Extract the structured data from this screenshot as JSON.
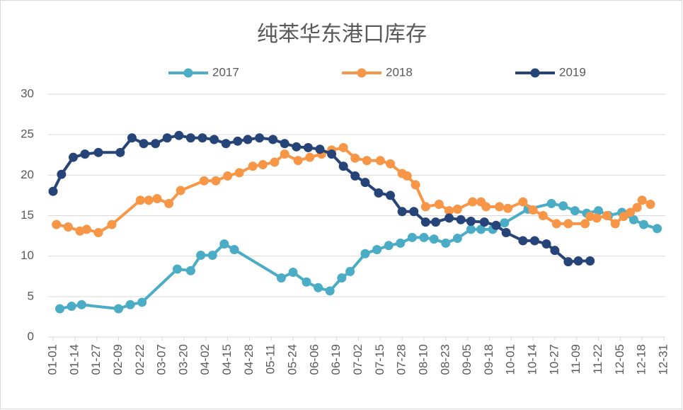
{
  "chart_data": {
    "type": "line",
    "title": "纯苯华东港口库存",
    "xlim": [
      "01-01",
      "12-31"
    ],
    "xticks": [
      "01-01",
      "01-14",
      "01-27",
      "02-09",
      "02-22",
      "03-07",
      "03-20",
      "04-02",
      "04-15",
      "04-28",
      "05-11",
      "05-24",
      "06-06",
      "06-19",
      "07-02",
      "07-15",
      "07-28",
      "08-10",
      "08-23",
      "09-05",
      "09-18",
      "10-01",
      "10-14",
      "10-27",
      "11-09",
      "11-22",
      "12-05",
      "12-18",
      "12-31"
    ],
    "ylim": [
      0,
      30
    ],
    "yticks": [
      0,
      5,
      10,
      15,
      20,
      25,
      30
    ],
    "grid": true,
    "legend": "top",
    "series": [
      {
        "name": "2017",
        "color": "#4bacc6",
        "x": [
          "01-05",
          "01-12",
          "01-18",
          "02-09",
          "02-16",
          "02-23",
          "03-16",
          "03-24",
          "03-30",
          "04-06",
          "04-13",
          "04-19",
          "05-17",
          "05-24",
          "06-01",
          "06-08",
          "06-15",
          "06-22",
          "06-27",
          "07-06",
          "07-13",
          "07-20",
          "07-27",
          "08-03",
          "08-10",
          "08-16",
          "08-23",
          "08-30",
          "09-07",
          "09-13",
          "09-20",
          "09-27",
          "10-11",
          "10-25",
          "11-01",
          "11-08",
          "11-15",
          "11-22",
          "11-28",
          "12-06",
          "12-13",
          "12-19",
          "12-27"
        ],
        "values": [
          3.5,
          3.8,
          4.0,
          3.5,
          4.0,
          4.3,
          8.4,
          8.2,
          10.1,
          10.1,
          11.5,
          10.8,
          7.3,
          8.0,
          6.8,
          6.1,
          5.7,
          7.3,
          8.1,
          10.3,
          10.8,
          11.3,
          11.6,
          12.3,
          12.3,
          12.1,
          11.6,
          12.2,
          13.3,
          13.3,
          13.3,
          14.1,
          15.8,
          16.5,
          16.2,
          15.6,
          15.3,
          15.6,
          15.0,
          15.4,
          14.5,
          13.9,
          13.4
        ]
      },
      {
        "name": "2018",
        "color": "#f79646",
        "x": [
          "01-03",
          "01-10",
          "01-17",
          "01-21",
          "01-28",
          "02-05",
          "02-22",
          "02-27",
          "03-04",
          "03-11",
          "03-18",
          "04-01",
          "04-08",
          "04-15",
          "04-22",
          "04-30",
          "05-06",
          "05-13",
          "05-19",
          "05-27",
          "06-03",
          "06-10",
          "06-16",
          "06-23",
          "06-30",
          "07-07",
          "07-15",
          "07-21",
          "07-28",
          "07-31",
          "08-05",
          "08-11",
          "08-19",
          "08-25",
          "08-30",
          "09-08",
          "09-13",
          "09-16",
          "09-24",
          "09-29",
          "10-08",
          "10-14",
          "10-20",
          "10-28",
          "11-04",
          "11-14",
          "11-17",
          "11-21",
          "11-27",
          "12-02",
          "12-07",
          "12-11",
          "12-15",
          "12-18",
          "12-23"
        ],
        "values": [
          13.9,
          13.6,
          13.1,
          13.3,
          12.9,
          13.9,
          16.9,
          16.9,
          17.1,
          16.5,
          18.1,
          19.3,
          19.3,
          19.9,
          20.3,
          21.1,
          21.3,
          21.6,
          22.6,
          21.8,
          22.2,
          22.6,
          23.1,
          23.4,
          22.1,
          21.8,
          21.8,
          21.4,
          20.2,
          19.9,
          18.8,
          16.1,
          16.4,
          15.6,
          15.8,
          16.7,
          16.7,
          16.1,
          16.1,
          15.9,
          16.7,
          15.7,
          15.0,
          14.0,
          14.0,
          14.0,
          14.9,
          14.7,
          15.0,
          14.0,
          14.9,
          15.4,
          16.0,
          16.9,
          16.4
        ]
      },
      {
        "name": "2019",
        "color": "#264478",
        "x": [
          "01-01",
          "01-06",
          "01-13",
          "01-20",
          "01-28",
          "02-10",
          "02-17",
          "02-24",
          "03-03",
          "03-10",
          "03-17",
          "03-24",
          "03-31",
          "04-07",
          "04-14",
          "04-21",
          "04-27",
          "05-04",
          "05-12",
          "05-19",
          "05-26",
          "06-02",
          "06-09",
          "06-16",
          "06-23",
          "06-30",
          "07-06",
          "07-14",
          "07-21",
          "07-28",
          "08-04",
          "08-11",
          "08-17",
          "08-25",
          "09-01",
          "09-07",
          "09-15",
          "09-22",
          "09-28",
          "10-08",
          "10-15",
          "10-22",
          "10-27",
          "11-04",
          "11-10",
          "11-17"
        ],
        "values": [
          18.0,
          20.1,
          22.2,
          22.6,
          22.8,
          22.8,
          24.6,
          23.9,
          23.9,
          24.6,
          24.9,
          24.6,
          24.6,
          24.4,
          23.9,
          24.2,
          24.4,
          24.6,
          24.4,
          23.9,
          23.5,
          23.4,
          23.2,
          22.6,
          21.1,
          19.9,
          19.1,
          17.8,
          17.5,
          15.5,
          15.5,
          14.2,
          14.2,
          14.7,
          14.5,
          14.3,
          14.2,
          13.8,
          12.9,
          11.9,
          11.9,
          11.5,
          10.7,
          9.3,
          9.4,
          9.4
        ]
      }
    ]
  }
}
